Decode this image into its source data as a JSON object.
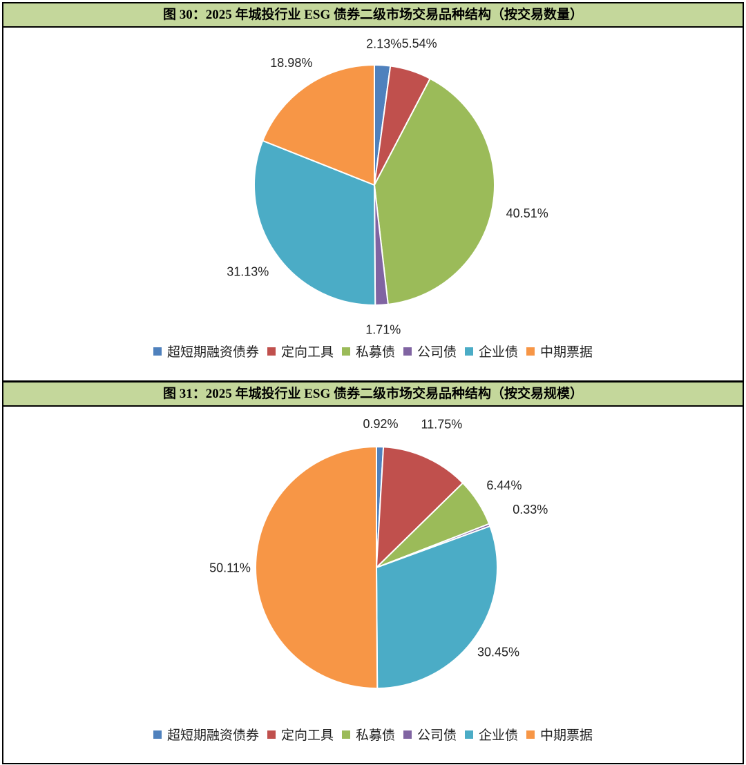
{
  "chart_data": [
    {
      "type": "pie",
      "title": "图 30：2025 年城投行业 ESG 债券二级市场交易品种结构（按交易数量）",
      "categories": [
        "超短期融资债券",
        "定向工具",
        "私募债",
        "公司债",
        "企业债",
        "中期票据"
      ],
      "values": [
        2.13,
        5.54,
        40.51,
        1.71,
        31.13,
        18.98
      ],
      "labels": [
        "2.13%",
        "5.54%",
        "40.51%",
        "1.71%",
        "31.13%",
        "18.98%"
      ],
      "colors": [
        "#4f81bd",
        "#c0504d",
        "#9bbb59",
        "#8064a2",
        "#4bacc6",
        "#f79646"
      ],
      "legend_position": "bottom"
    },
    {
      "type": "pie",
      "title": "图 31：2025 年城投行业 ESG 债券二级市场交易品种结构（按交易规模）",
      "categories": [
        "超短期融资债券",
        "定向工具",
        "私募债",
        "公司债",
        "企业债",
        "中期票据"
      ],
      "values": [
        0.92,
        11.75,
        6.44,
        0.33,
        30.45,
        50.11
      ],
      "labels": [
        "0.92%",
        "11.75%",
        "6.44%",
        "0.33%",
        "30.45%",
        "50.11%"
      ],
      "colors": [
        "#4f81bd",
        "#c0504d",
        "#9bbb59",
        "#8064a2",
        "#4bacc6",
        "#f79646"
      ],
      "legend_position": "bottom"
    }
  ]
}
